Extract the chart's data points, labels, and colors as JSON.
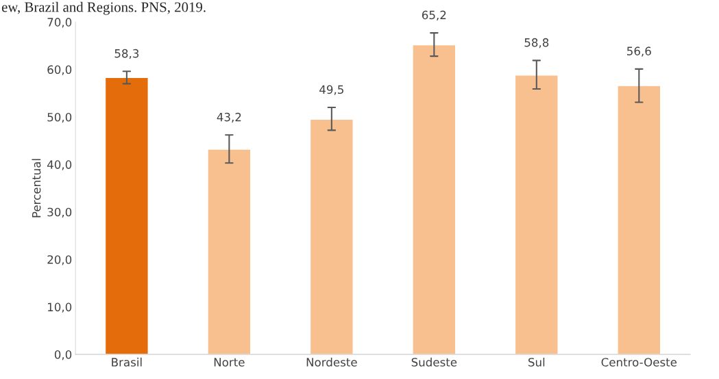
{
  "chart_data": {
    "type": "bar",
    "title": "ew, Brazil and Regions. PNS, 2019.",
    "ylabel": "Percentual",
    "categories": [
      "Brasil",
      "Norte",
      "Nordeste",
      "Sudeste",
      "Sul",
      "Centro-Oeste"
    ],
    "values": [
      58.3,
      43.2,
      49.5,
      65.2,
      58.8,
      56.6
    ],
    "colors": [
      "#e46c0a",
      "#f9c08f",
      "#f9c08f",
      "#f9c08f",
      "#f9c08f",
      "#f9c08f"
    ],
    "errors": [
      [
        57.0,
        59.6
      ],
      [
        40.3,
        46.2
      ],
      [
        47.2,
        52.0
      ],
      [
        62.8,
        67.7
      ],
      [
        55.9,
        61.9
      ],
      [
        53.1,
        60.1
      ]
    ],
    "value_labels": [
      "58,3",
      "43,2",
      "49,5",
      "65,2",
      "58,8",
      "56,6"
    ],
    "ylim": [
      0,
      70
    ],
    "yticks": [
      {
        "value": 0,
        "label": "0,0"
      },
      {
        "value": 10,
        "label": "10,0"
      },
      {
        "value": 20,
        "label": "20,0"
      },
      {
        "value": 30,
        "label": "30,0"
      },
      {
        "value": 40,
        "label": "40,0"
      },
      {
        "value": 50,
        "label": "50,0"
      },
      {
        "value": 60,
        "label": "60,0"
      },
      {
        "value": 70,
        "label": "70,0"
      }
    ],
    "grid": false,
    "legend": false
  }
}
